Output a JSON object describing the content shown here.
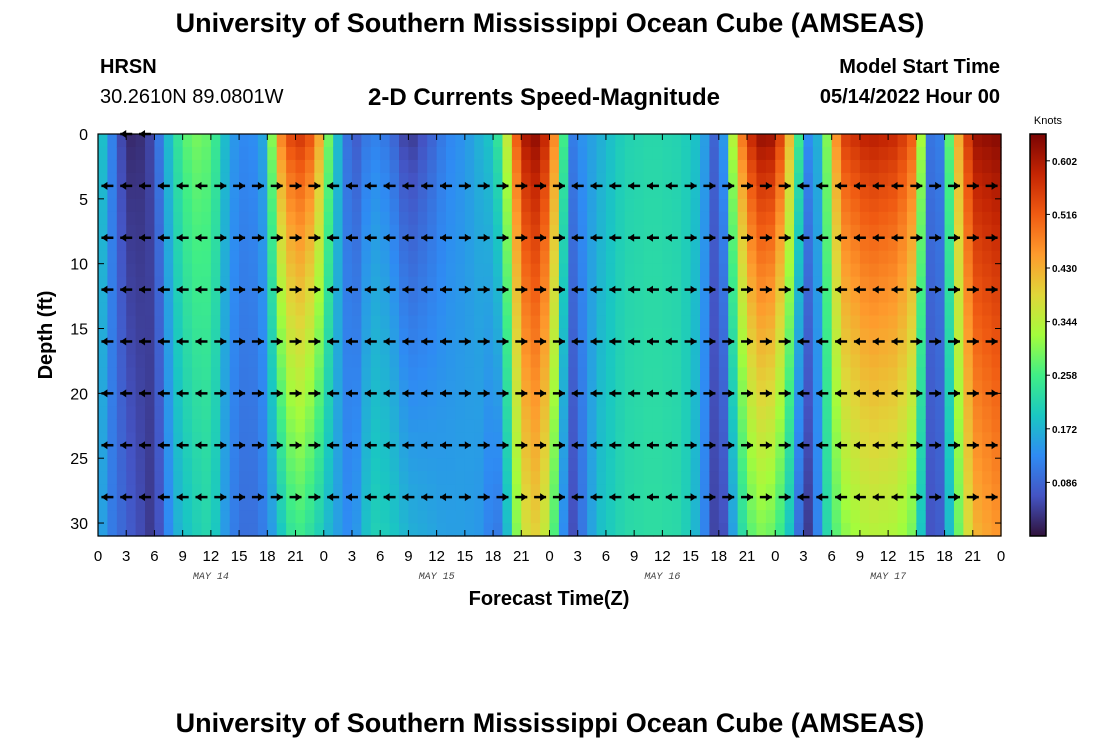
{
  "header": {
    "title": "University of Southern Mississippi Ocean Cube (AMSEAS)",
    "station": "HRSN",
    "coords": "30.2610N  89.0801W",
    "subtitle": "2-D Currents Speed-Magnitude",
    "start_label": "Model Start Time",
    "start_value": "05/14/2022 Hour 00"
  },
  "footer": {
    "title": "University of Southern Mississippi Ocean Cube (AMSEAS)"
  },
  "colors": {
    "scale": [
      "#30123b",
      "#4454c4",
      "#2f8bf3",
      "#1ac7c2",
      "#40ee86",
      "#a4fc3c",
      "#e0d639",
      "#fe9b2d",
      "#f05b12",
      "#c42503",
      "#7a0403"
    ]
  },
  "chart_data": {
    "type": "heatmap",
    "title": "2-D Currents Speed-Magnitude",
    "xlabel": "Forecast Time(Z)",
    "ylabel": "Depth (ft)",
    "xlim": [
      0,
      96
    ],
    "ylim": [
      0,
      31
    ],
    "x_ticks": [
      "0",
      "3",
      "6",
      "9",
      "12",
      "15",
      "18",
      "21",
      "0",
      "3",
      "6",
      "9",
      "12",
      "15",
      "18",
      "21",
      "0",
      "3",
      "6",
      "9",
      "12",
      "15",
      "18",
      "21",
      "0",
      "3",
      "6",
      "9",
      "12",
      "15",
      "18",
      "21",
      "0"
    ],
    "y_ticks": [
      "0",
      "5",
      "10",
      "15",
      "20",
      "25",
      "30"
    ],
    "day_labels": [
      {
        "label": "MAY 14",
        "hour": 12
      },
      {
        "label": "MAY 15",
        "hour": 36
      },
      {
        "label": "MAY 16",
        "hour": 60
      },
      {
        "label": "MAY 17",
        "hour": 84
      }
    ],
    "colorbar": {
      "title": "Knots",
      "min": 0,
      "max": 0.645,
      "ticks": [
        "0.602",
        "0.516",
        "0.430",
        "0.344",
        "0.258",
        "0.172",
        "0.086"
      ]
    },
    "speed_profile_knots": [
      {
        "hour": 0,
        "surface": 0.22,
        "bottom": 0.18
      },
      {
        "hour": 1,
        "surface": 0.15,
        "bottom": 0.12
      },
      {
        "hour": 3,
        "surface": 0.02,
        "bottom": 0.08
      },
      {
        "hour": 5,
        "surface": 0.03,
        "bottom": 0.05
      },
      {
        "hour": 6,
        "surface": 0.07,
        "bottom": 0.03
      },
      {
        "hour": 8,
        "surface": 0.22,
        "bottom": 0.16
      },
      {
        "hour": 10,
        "surface": 0.3,
        "bottom": 0.2
      },
      {
        "hour": 12,
        "surface": 0.28,
        "bottom": 0.22
      },
      {
        "hour": 14,
        "surface": 0.15,
        "bottom": 0.12
      },
      {
        "hour": 16,
        "surface": 0.12,
        "bottom": 0.09
      },
      {
        "hour": 18,
        "surface": 0.17,
        "bottom": 0.12
      },
      {
        "hour": 19,
        "surface": 0.45,
        "bottom": 0.17
      },
      {
        "hour": 21,
        "surface": 0.58,
        "bottom": 0.26
      },
      {
        "hour": 23,
        "surface": 0.52,
        "bottom": 0.22
      },
      {
        "hour": 25,
        "surface": 0.22,
        "bottom": 0.16
      },
      {
        "hour": 27,
        "surface": 0.06,
        "bottom": 0.12
      },
      {
        "hour": 29,
        "surface": 0.12,
        "bottom": 0.21
      },
      {
        "hour": 31,
        "surface": 0.1,
        "bottom": 0.2
      },
      {
        "hour": 33,
        "surface": 0.03,
        "bottom": 0.17
      },
      {
        "hour": 35,
        "surface": 0.07,
        "bottom": 0.16
      },
      {
        "hour": 37,
        "surface": 0.12,
        "bottom": 0.15
      },
      {
        "hour": 39,
        "surface": 0.14,
        "bottom": 0.15
      },
      {
        "hour": 41,
        "surface": 0.18,
        "bottom": 0.14
      },
      {
        "hour": 42,
        "surface": 0.2,
        "bottom": 0.1
      },
      {
        "hour": 43,
        "surface": 0.28,
        "bottom": 0.12
      },
      {
        "hour": 45,
        "surface": 0.6,
        "bottom": 0.36
      },
      {
        "hour": 47,
        "surface": 0.64,
        "bottom": 0.4
      },
      {
        "hour": 49,
        "surface": 0.42,
        "bottom": 0.22
      },
      {
        "hour": 50,
        "surface": 0.1,
        "bottom": 0.04
      },
      {
        "hour": 51,
        "surface": 0.13,
        "bottom": 0.08
      },
      {
        "hour": 53,
        "surface": 0.16,
        "bottom": 0.18
      },
      {
        "hour": 56,
        "surface": 0.21,
        "bottom": 0.22
      },
      {
        "hour": 59,
        "surface": 0.22,
        "bottom": 0.23
      },
      {
        "hour": 62,
        "surface": 0.21,
        "bottom": 0.22
      },
      {
        "hour": 64,
        "surface": 0.18,
        "bottom": 0.16
      },
      {
        "hour": 65,
        "surface": 0.12,
        "bottom": 0.08
      },
      {
        "hour": 66,
        "surface": 0.05,
        "bottom": 0.02
      },
      {
        "hour": 67,
        "surface": 0.24,
        "bottom": 0.1
      },
      {
        "hour": 68,
        "surface": 0.45,
        "bottom": 0.2
      },
      {
        "hour": 70,
        "surface": 0.63,
        "bottom": 0.3
      },
      {
        "hour": 72,
        "surface": 0.62,
        "bottom": 0.28
      },
      {
        "hour": 74,
        "surface": 0.36,
        "bottom": 0.16
      },
      {
        "hour": 75,
        "surface": 0.15,
        "bottom": 0.03
      },
      {
        "hour": 76,
        "surface": 0.12,
        "bottom": 0.05
      },
      {
        "hour": 77,
        "surface": 0.22,
        "bottom": 0.19
      },
      {
        "hour": 79,
        "surface": 0.55,
        "bottom": 0.3
      },
      {
        "hour": 82,
        "surface": 0.6,
        "bottom": 0.34
      },
      {
        "hour": 85,
        "surface": 0.58,
        "bottom": 0.33
      },
      {
        "hour": 87,
        "surface": 0.5,
        "bottom": 0.28
      },
      {
        "hour": 88,
        "surface": 0.16,
        "bottom": 0.1
      },
      {
        "hour": 89,
        "surface": 0.05,
        "bottom": 0.03
      },
      {
        "hour": 90,
        "surface": 0.18,
        "bottom": 0.12
      },
      {
        "hour": 91,
        "surface": 0.38,
        "bottom": 0.24
      },
      {
        "hour": 93,
        "surface": 0.62,
        "bottom": 0.42
      },
      {
        "hour": 96,
        "surface": 0.64,
        "bottom": 0.46
      }
    ],
    "arrow_depths_ft": [
      0,
      4,
      8,
      12,
      16,
      20,
      24,
      28
    ],
    "arrow_hour_step": 2,
    "arrow_surface_hours": [
      3,
      5
    ]
  }
}
